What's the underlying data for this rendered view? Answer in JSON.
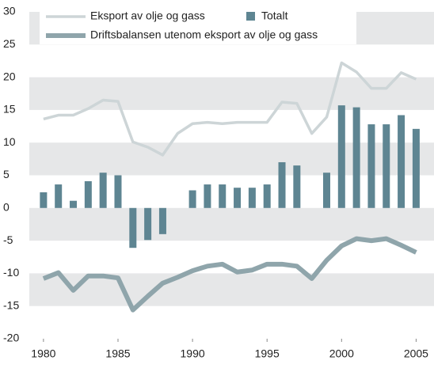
{
  "chart_data": {
    "type": "bar-line",
    "x": [
      1980,
      1981,
      1982,
      1983,
      1984,
      1985,
      1986,
      1987,
      1988,
      1989,
      1990,
      1991,
      1992,
      1993,
      1994,
      1995,
      1996,
      1997,
      1998,
      1999,
      2000,
      2001,
      2002,
      2003,
      2004,
      2005
    ],
    "series": [
      {
        "name": "Totalt",
        "type": "bar",
        "color": "#5e8592",
        "values": [
          2.4,
          3.6,
          1.1,
          4.1,
          5.4,
          5.0,
          -6.1,
          -4.9,
          -4.0,
          0,
          2.7,
          3.6,
          3.6,
          3.1,
          3.1,
          3.6,
          7.0,
          6.5,
          0,
          5.4,
          15.7,
          15.4,
          12.8,
          12.8,
          14.2,
          12.1
        ]
      },
      {
        "name": "Eksport av olje og gass",
        "type": "line",
        "color": "#cdd5d7",
        "values": [
          13.6,
          14.2,
          14.2,
          15.2,
          16.5,
          16.3,
          10.1,
          9.3,
          8.1,
          11.4,
          12.9,
          13.1,
          12.9,
          13.1,
          13.1,
          13.1,
          16.2,
          16.0,
          11.4,
          13.9,
          22.2,
          20.8,
          18.3,
          18.3,
          20.7,
          19.7
        ]
      },
      {
        "name": "Driftsbalansen utenom eksport av olje og gass",
        "type": "line",
        "color": "#8fa5ab",
        "values": [
          -10.8,
          -9.9,
          -12.6,
          -10.4,
          -10.4,
          -10.7,
          -15.6,
          -13.5,
          -11.5,
          -10.6,
          -9.6,
          -8.9,
          -8.6,
          -9.8,
          -9.5,
          -8.6,
          -8.6,
          -8.9,
          -10.8,
          -8.0,
          -5.8,
          -4.7,
          -5.0,
          -4.7,
          -5.7,
          -6.8
        ]
      }
    ],
    "xlim": [
      1979.05,
      2006.2
    ],
    "xticks": [
      1980,
      1985,
      1990,
      1995,
      2000,
      2005
    ],
    "ylim": [
      -20,
      30
    ],
    "yticks": [
      -20,
      -15,
      -10,
      -5,
      0,
      5,
      10,
      15,
      20,
      25,
      30
    ]
  }
}
